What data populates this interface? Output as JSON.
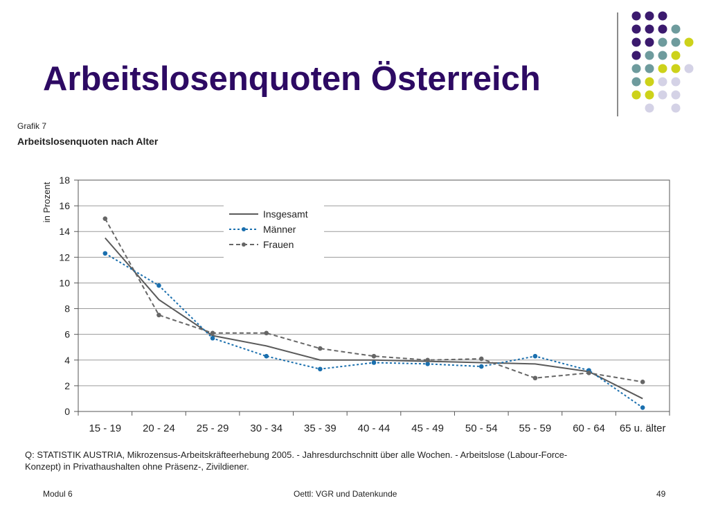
{
  "slide": {
    "title": "Arbeitslosenquoten Österreich",
    "figure_label": "Grafik 7",
    "figure_title": "Arbeitslosenquoten nach Alter",
    "source_line1": "Q: STATISTIK AUSTRIA, Mikrozensus-Arbeitskräfteerhebung 2005. - Jahresdurchschnitt über alle Wochen. - Arbeitslose (Labour-Force-",
    "source_line2": "Konzept) in Privathaushalten ohne Präsenz-, Zivildiener.",
    "footer_left": "Modul 6",
    "footer_center": "Oettl: VGR und Datenkunde",
    "footer_right": "49"
  },
  "decor_colors": {
    "purple": "#3b1a6e",
    "teal": "#6e9b9d",
    "yellow": "#cdd21a",
    "lavender": "#d4d2e6"
  },
  "chart_data": {
    "type": "line",
    "ylabel": "in Prozent",
    "xlabel": "",
    "ylim": [
      0,
      18
    ],
    "yticks": [
      0,
      2,
      4,
      6,
      8,
      10,
      12,
      14,
      16,
      18
    ],
    "grid": true,
    "legend_position": "top-center",
    "categories": [
      "15 - 19",
      "20 - 24",
      "25 - 29",
      "30 - 34",
      "35 - 39",
      "40 - 44",
      "45 - 49",
      "50 - 54",
      "55 - 59",
      "60 - 64",
      "65 u. älter"
    ],
    "series": [
      {
        "name": "Insgesamt",
        "style": "solid",
        "color": "#5a5a5a",
        "markers": false,
        "values": [
          13.5,
          8.7,
          5.9,
          5.1,
          4.0,
          4.0,
          3.9,
          3.8,
          3.7,
          3.1,
          1.0
        ]
      },
      {
        "name": "Männer",
        "style": "dotted",
        "color": "#1a6fae",
        "markers": true,
        "values": [
          12.3,
          9.8,
          5.7,
          4.3,
          3.3,
          3.8,
          3.7,
          3.5,
          4.3,
          3.2,
          0.3
        ]
      },
      {
        "name": "Frauen",
        "style": "dashed",
        "color": "#666666",
        "markers": true,
        "values": [
          15.0,
          7.5,
          6.1,
          6.1,
          4.9,
          4.3,
          4.0,
          4.1,
          2.6,
          3.0,
          2.3
        ]
      }
    ]
  }
}
